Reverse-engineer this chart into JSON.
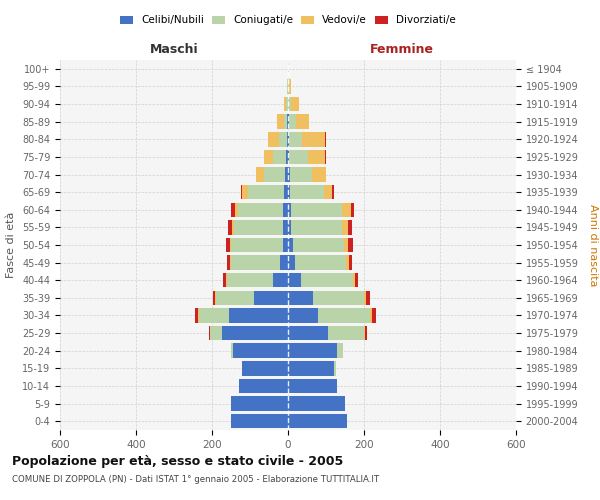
{
  "age_groups": [
    "0-4",
    "5-9",
    "10-14",
    "15-19",
    "20-24",
    "25-29",
    "30-34",
    "35-39",
    "40-44",
    "45-49",
    "50-54",
    "55-59",
    "60-64",
    "65-69",
    "70-74",
    "75-79",
    "80-84",
    "85-89",
    "90-94",
    "95-99",
    "100+"
  ],
  "birth_years": [
    "2000-2004",
    "1995-1999",
    "1990-1994",
    "1985-1989",
    "1980-1984",
    "1975-1979",
    "1970-1974",
    "1965-1969",
    "1960-1964",
    "1955-1959",
    "1950-1954",
    "1945-1949",
    "1940-1944",
    "1935-1939",
    "1930-1934",
    "1925-1929",
    "1920-1924",
    "1915-1919",
    "1910-1914",
    "1905-1909",
    "≤ 1904"
  ],
  "colors": {
    "celibi": "#4472C4",
    "coniugati": "#B8D4A8",
    "vedovi": "#F0C060",
    "divorziati": "#CC2222"
  },
  "males": {
    "celibi": [
      150,
      150,
      130,
      120,
      145,
      175,
      155,
      90,
      40,
      20,
      14,
      12,
      12,
      10,
      8,
      5,
      3,
      2,
      1,
      1,
      0
    ],
    "coniugati": [
      0,
      0,
      0,
      2,
      5,
      30,
      80,
      100,
      120,
      130,
      135,
      130,
      120,
      95,
      55,
      35,
      20,
      8,
      4,
      1,
      0
    ],
    "vedovi": [
      0,
      0,
      0,
      0,
      0,
      1,
      2,
      2,
      2,
      2,
      3,
      5,
      8,
      15,
      20,
      22,
      30,
      18,
      6,
      1,
      0
    ],
    "divorziati": [
      0,
      0,
      0,
      0,
      0,
      2,
      8,
      5,
      8,
      8,
      10,
      10,
      10,
      5,
      2,
      2,
      0,
      0,
      0,
      0,
      0
    ]
  },
  "females": {
    "nubili": [
      155,
      150,
      130,
      120,
      130,
      105,
      80,
      65,
      35,
      18,
      12,
      8,
      8,
      5,
      4,
      3,
      3,
      2,
      1,
      1,
      0
    ],
    "coniugate": [
      0,
      0,
      0,
      5,
      15,
      95,
      135,
      135,
      135,
      135,
      135,
      135,
      135,
      90,
      60,
      50,
      35,
      18,
      8,
      2,
      0
    ],
    "vedove": [
      0,
      0,
      0,
      0,
      0,
      2,
      5,
      5,
      5,
      8,
      12,
      16,
      22,
      22,
      35,
      45,
      60,
      35,
      20,
      5,
      0
    ],
    "divorziate": [
      0,
      0,
      0,
      0,
      0,
      5,
      12,
      10,
      10,
      8,
      12,
      10,
      8,
      3,
      2,
      2,
      2,
      0,
      0,
      0,
      0
    ]
  },
  "xlim": 600,
  "title": "Popolazione per età, sesso e stato civile - 2005",
  "subtitle": "COMUNE DI ZOPPOLA (PN) - Dati ISTAT 1° gennaio 2005 - Elaborazione TUTTITALIA.IT",
  "xlabel_left": "Maschi",
  "xlabel_right": "Femmine",
  "ylabel_left": "Fasce di età",
  "ylabel_right": "Anni di nascita"
}
